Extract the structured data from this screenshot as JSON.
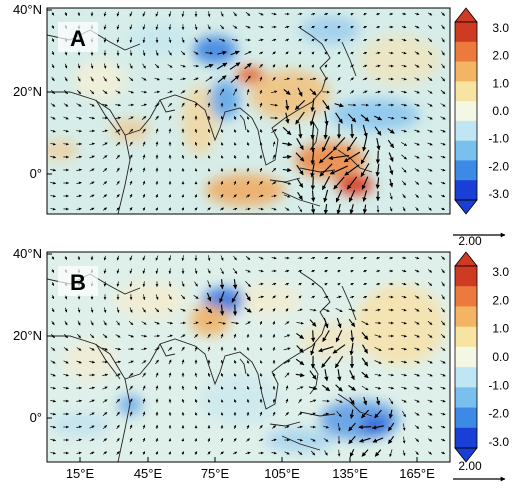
{
  "figure": {
    "panels": [
      {
        "id": "A",
        "label": "A",
        "y_ticks": [
          "40°N",
          "20°N",
          "0°"
        ],
        "x_ticks": []
      },
      {
        "id": "B",
        "label": "B",
        "y_ticks": [
          "40°N",
          "20°N",
          "0°"
        ],
        "x_ticks": [
          "15°E",
          "45°E",
          "75°E",
          "105°E",
          "135°E",
          "165°E"
        ]
      }
    ],
    "colorbars": [
      {
        "ticks": [
          "3.0",
          "2.0",
          "1.0",
          "0.0",
          "-1.0",
          "-2.0",
          "-3.0"
        ],
        "ref_vector_label": "2.00"
      },
      {
        "ticks": [
          "3.0",
          "2.0",
          "1.0",
          "0.0",
          "-1.0",
          "-2.0",
          "-3.0"
        ],
        "ref_vector_label": "2.00"
      }
    ],
    "map_extent": {
      "lon_range": [
        "0°E",
        "180°E"
      ],
      "lat_range": [
        "10°S",
        "40°N"
      ]
    },
    "colormap": [
      "#1a3fd6",
      "#3c8ae6",
      "#79c0ee",
      "#bfe6f2",
      "#f3f7e4",
      "#f7e3a2",
      "#f3b564",
      "#ec7a3f",
      "#cf3a22"
    ],
    "colors": {
      "axis": "#000000",
      "coast": "#222222",
      "vector": "#000000",
      "background": "#ffffff"
    }
  }
}
